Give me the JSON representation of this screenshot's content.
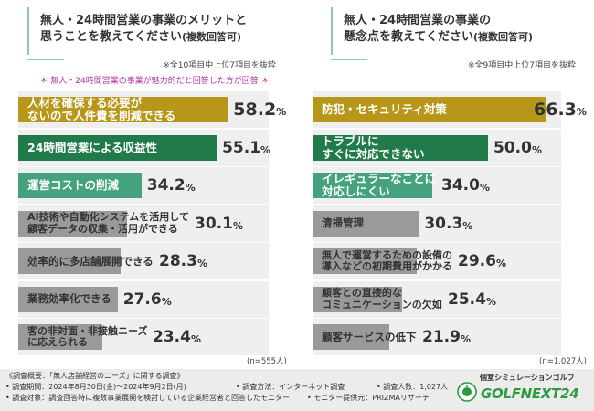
{
  "colors": {
    "gold": "#b8961a",
    "dark_green": "#217a4a",
    "mid_green": "#44a37e",
    "gray": "#9a9a9a",
    "title_bar": "#8fc9a4",
    "footer_bg": "#ececec",
    "condition_text": "#b02ea0",
    "brand_green": "#2e9a3e"
  },
  "left": {
    "title_line1": "無人・24時間営業の事業のメリットと",
    "title_line2": "思うことを教えてください",
    "title_suffix": "(複数回答可)",
    "note": "※全10項目中上位7項目を抜粋",
    "condition": "＊ 無人・24時間営業の事業が魅力的だと回答した方が回答 ＊",
    "sample": "(n=555人)"
  },
  "right": {
    "title_line1": "無人・24時間営業の事業の",
    "title_line2": "懸念点を教えてください",
    "title_suffix": "(複数回答可)",
    "note": "※全9項目中上位7項目を抜粋",
    "sample": "(n=1,027人)"
  },
  "chart_data": [
    {
      "type": "bar",
      "orientation": "horizontal",
      "title": "無人・24時間営業の事業のメリットと思うことを教えてください(複数回答可)",
      "unit": "%",
      "xlim": [
        0,
        100
      ],
      "categories": [
        "人材を確保する必要が\nないので人件費を削減できる",
        "24時間営業による収益性",
        "運営コストの削減",
        "AI技術や自動化システムを活用して\n顧客データの収集・活用ができる",
        "効率的に多店舗展開できる",
        "業務効率化できる",
        "客の非対面・非接触ニーズ\nに応えられる"
      ],
      "values": [
        58.2,
        55.1,
        34.2,
        30.1,
        28.3,
        27.6,
        23.4
      ],
      "value_labels": [
        {
          "num": "58.2",
          "unit": "%"
        },
        {
          "num": "55.1",
          "unit": "%"
        },
        {
          "num": "34.2",
          "unit": "%"
        },
        {
          "num": "30.1",
          "unit": "%"
        },
        {
          "num": "28.3",
          "unit": "%"
        },
        {
          "num": "27.6",
          "unit": "%"
        },
        {
          "num": "23.4",
          "unit": "%"
        }
      ],
      "bar_colors": [
        "#b8961a",
        "#217a4a",
        "#44a37e",
        "#9a9a9a",
        "#9a9a9a",
        "#9a9a9a",
        "#9a9a9a"
      ]
    },
    {
      "type": "bar",
      "orientation": "horizontal",
      "title": "無人・24時間営業の事業の懸念点を教えてください(複数回答可)",
      "unit": "%",
      "xlim": [
        0,
        100
      ],
      "categories": [
        "防犯・セキュリティ対策",
        "トラブルに\nすぐに対応できない",
        "イレギュラーなことに\n対応しにくい",
        "清掃管理",
        "無人で運営するための設備の\n導入などの初期費用がかかる",
        "顧客との直接的な\nコミュニケーションの欠如",
        "顧客サービスの低下"
      ],
      "values": [
        66.3,
        50.0,
        34.0,
        30.3,
        29.6,
        25.4,
        21.9
      ],
      "value_labels": [
        {
          "num": "66.3",
          "unit": "%"
        },
        {
          "num": "50.0",
          "unit": "%"
        },
        {
          "num": "34.0",
          "unit": "%"
        },
        {
          "num": "30.3",
          "unit": "%"
        },
        {
          "num": "29.6",
          "unit": "%"
        },
        {
          "num": "25.4",
          "unit": "%"
        },
        {
          "num": "21.9",
          "unit": "%"
        }
      ],
      "bar_colors": [
        "#b8961a",
        "#217a4a",
        "#44a37e",
        "#9a9a9a",
        "#9a9a9a",
        "#9a9a9a",
        "#9a9a9a"
      ]
    }
  ],
  "footer": {
    "line1": "《調査概要：「無人店舗経営のニーズ」に関する調査》",
    "line2": "• 調査期間：2024年8月30日(金)～2024年9月2日(月)",
    "method": "• 調査方法：インターネット調査",
    "respondents": "• 調査人数：1,027人",
    "line3": "• 調査対象：調査回答時に複数事業展開を検討している企業経営者と回答したモニター",
    "provider": "• モニター提供元：PRIZMAリサーチ"
  },
  "brand": {
    "subtitle": "個室シミュレーションゴルフ",
    "name": "GOLFNEXT24",
    "icon": "golf-ball-flag-icon"
  }
}
